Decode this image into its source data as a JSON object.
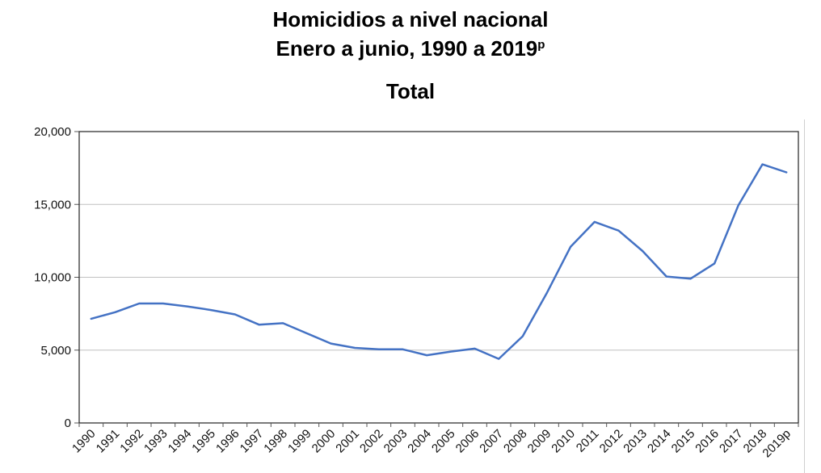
{
  "header": {
    "title_line1": "Homicidios a nivel nacional",
    "title_line2": "Enero a junio, 1990 a 2019",
    "title_superscript": "p",
    "subtitle": "Total"
  },
  "chart_data": {
    "type": "line",
    "title": "Homicidios a nivel nacional Enero a junio, 1990 a 2019p",
    "subtitle": "Total",
    "xlabel": "",
    "ylabel": "",
    "categories": [
      "1990",
      "1991",
      "1992",
      "1993",
      "1994",
      "1995",
      "1996",
      "1997",
      "1998",
      "1999",
      "2000",
      "2001",
      "2002",
      "2003",
      "2004",
      "2005",
      "2006",
      "2007",
      "2008",
      "2009",
      "2010",
      "2011",
      "2012",
      "2013",
      "2014",
      "2015",
      "2016",
      "2017",
      "2018",
      "2019p"
    ],
    "series": [
      {
        "values": [
          7150,
          7600,
          8200,
          8200,
          8000,
          7750,
          7450,
          6750,
          6850,
          6150,
          5450,
          5150,
          5050,
          5050,
          4650,
          4900,
          5100,
          4400,
          5950,
          8900,
          12100,
          13800,
          13200,
          11800,
          10050,
          9900,
          10950,
          14950,
          17750,
          17200
        ]
      }
    ],
    "yticks": [
      "0",
      "5,000",
      "10,000",
      "15,000",
      "20,000"
    ],
    "ylim": [
      0,
      20000
    ],
    "grid": true,
    "line_color": "#4472c4",
    "grid_color": "#c0c0c0"
  }
}
